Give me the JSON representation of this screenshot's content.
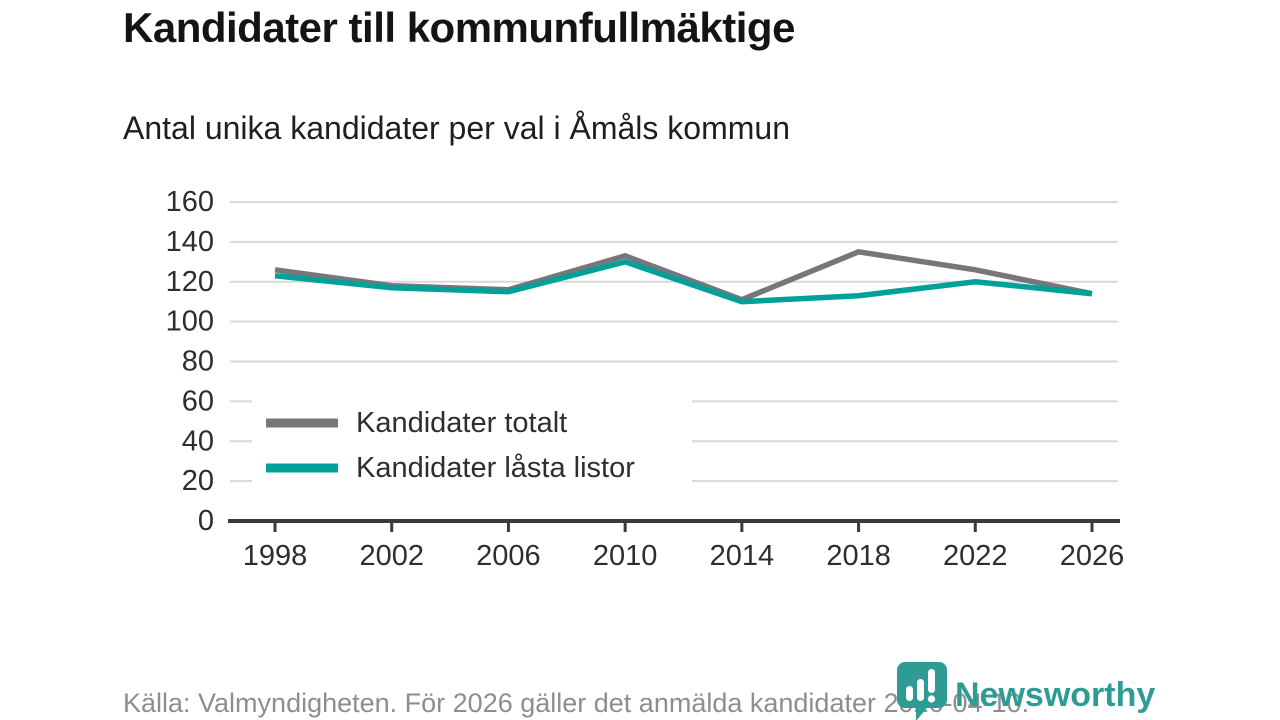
{
  "header": {
    "title": "Kandidater till kommunfullmäktige",
    "subtitle": "Antal unika kandidater per val i Åmåls kommun"
  },
  "footer": {
    "source_text": "Källa: Valmyndigheten. För 2026 gäller det anmälda kandidater 2026-04-10.",
    "brand": "Newsworthy"
  },
  "colors": {
    "total_line": "#76767b",
    "locked_line": "#00a19a",
    "grid": "#d9d9d9",
    "axis": "#3a3a3a",
    "tick_text": "#2e2e2e",
    "footer_text": "#8e8e8e",
    "brand": "#2e9c94",
    "legend_bg": "#ffffff"
  },
  "chart_data": {
    "type": "line",
    "title": "Kandidater till kommunfullmäktige",
    "subtitle": "Antal unika kandidater per val i Åmåls kommun",
    "categories": [
      "1998",
      "2002",
      "2006",
      "2010",
      "2014",
      "2018",
      "2022",
      "2026"
    ],
    "series": [
      {
        "name": "Kandidater totalt",
        "color": "#76767b",
        "values": [
          126,
          118,
          116,
          133,
          111,
          135,
          126,
          114
        ]
      },
      {
        "name": "Kandidater låsta listor",
        "color": "#00a19a",
        "values": [
          123,
          117,
          115,
          130,
          110,
          113,
          120,
          114
        ]
      }
    ],
    "xlabel": "",
    "ylabel": "",
    "ylim": [
      0,
      160
    ],
    "ytick_step": 20,
    "grid": "horizontal",
    "legend_position": "inside-bottom-left"
  }
}
